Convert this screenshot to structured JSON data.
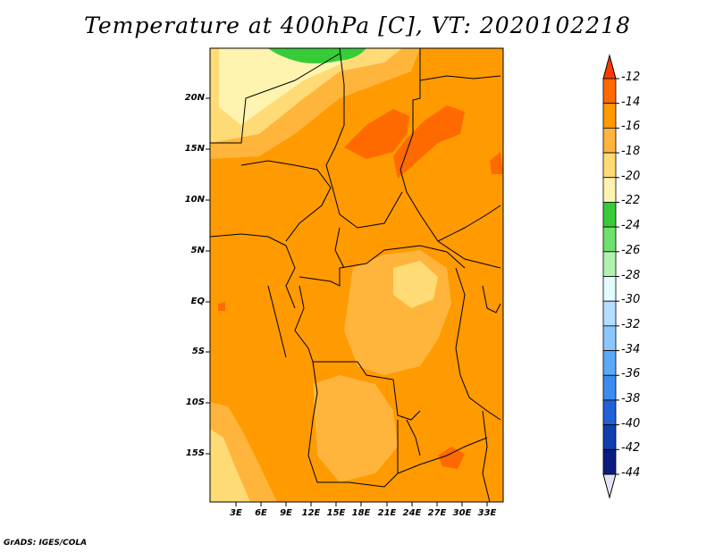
{
  "title": "Temperature at 400hPa [C], VT: 2020102218",
  "map": {
    "y_ticks": [
      "20N",
      "15N",
      "10N",
      "5N",
      "EQ",
      "5S",
      "10S",
      "15S"
    ],
    "x_ticks": [
      "3E",
      "6E",
      "9E",
      "12E",
      "15E",
      "18E",
      "21E",
      "24E",
      "27E",
      "30E",
      "33E"
    ]
  },
  "colorbar": {
    "labels": [
      "-12",
      "-14",
      "-16",
      "-18",
      "-20",
      "-22",
      "-24",
      "-26",
      "-28",
      "-30",
      "-32",
      "-34",
      "-36",
      "-38",
      "-40",
      "-42",
      "-44"
    ],
    "colors": [
      "#ff3a00",
      "#ff6a00",
      "#ff9a00",
      "#ffb53c",
      "#ffdb75",
      "#fff3b0",
      "#37cc37",
      "#6ee06e",
      "#b1f2b1",
      "#e4fbff",
      "#b4ddff",
      "#8bc7ff",
      "#5aaaf8",
      "#3a8cf0",
      "#2060d8",
      "#1040b0",
      "#0a1c80",
      "#e4e4f6"
    ]
  },
  "credit": "GrADS: IGES/COLA"
}
